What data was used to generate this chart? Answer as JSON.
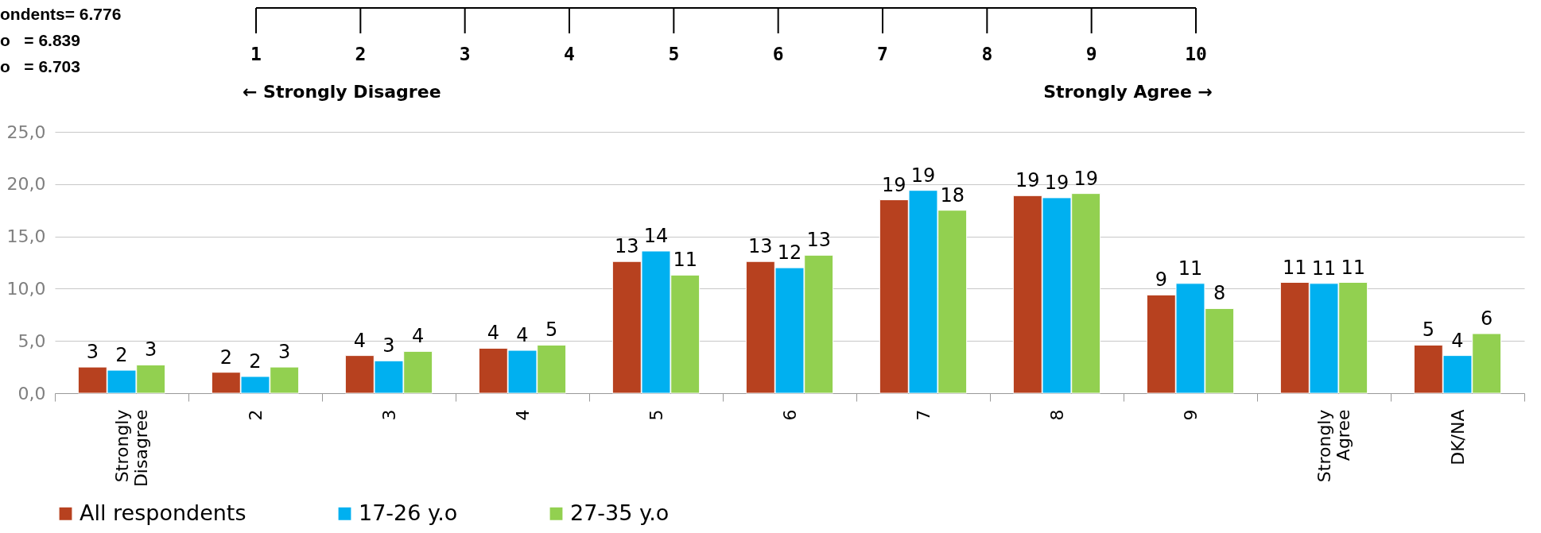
{
  "chart_data": {
    "type": "bar",
    "categories": [
      "Strongly Disagree",
      "2",
      "3",
      "4",
      "5",
      "6",
      "7",
      "8",
      "9",
      "Strongly Agree",
      "DK/NA"
    ],
    "series": [
      {
        "name": "All respondents",
        "color": "#b7411f",
        "values": [
          2.5,
          2.0,
          3.6,
          4.3,
          12.6,
          12.6,
          18.5,
          18.9,
          9.4,
          10.6,
          4.6
        ],
        "value_labels": [
          "3",
          "2",
          "4",
          "4",
          "13",
          "13",
          "19",
          "19",
          "9",
          "11",
          "5"
        ]
      },
      {
        "name": "17-26 y.o",
        "color": "#00b0f0",
        "values": [
          2.2,
          1.6,
          3.1,
          4.1,
          13.6,
          12.0,
          19.4,
          18.7,
          10.5,
          10.5,
          3.6
        ],
        "value_labels": [
          "2",
          "2",
          "3",
          "4",
          "14",
          "12",
          "19",
          "19",
          "11",
          "11",
          "4"
        ]
      },
      {
        "name": "27-35 y.o",
        "color": "#92d050",
        "values": [
          2.7,
          2.5,
          4.0,
          4.6,
          11.3,
          13.2,
          17.5,
          19.1,
          8.1,
          10.6,
          5.7
        ],
        "value_labels": [
          "3",
          "3",
          "4",
          "5",
          "11",
          "13",
          "18",
          "19",
          "8",
          "11",
          "6"
        ]
      }
    ],
    "ylim": [
      0,
      25
    ],
    "yticks": [
      {
        "value": 0,
        "label": "0,0"
      },
      {
        "value": 5,
        "label": "5,0"
      },
      {
        "value": 10,
        "label": "10,0"
      },
      {
        "value": 15,
        "label": "15,0"
      },
      {
        "value": 20,
        "label": "20,0"
      },
      {
        "value": 25,
        "label": "25,0"
      }
    ],
    "grid": "y",
    "legend": "bottom",
    "annotations": [
      "ondents= 6.776",
      "o   = 6.839",
      "o   = 6.703",
      "1",
      "2",
      "3",
      "4",
      "5",
      "6",
      "7",
      "8",
      "9",
      "10",
      "← Strongly Disagree",
      "Strongly Agree →"
    ]
  }
}
